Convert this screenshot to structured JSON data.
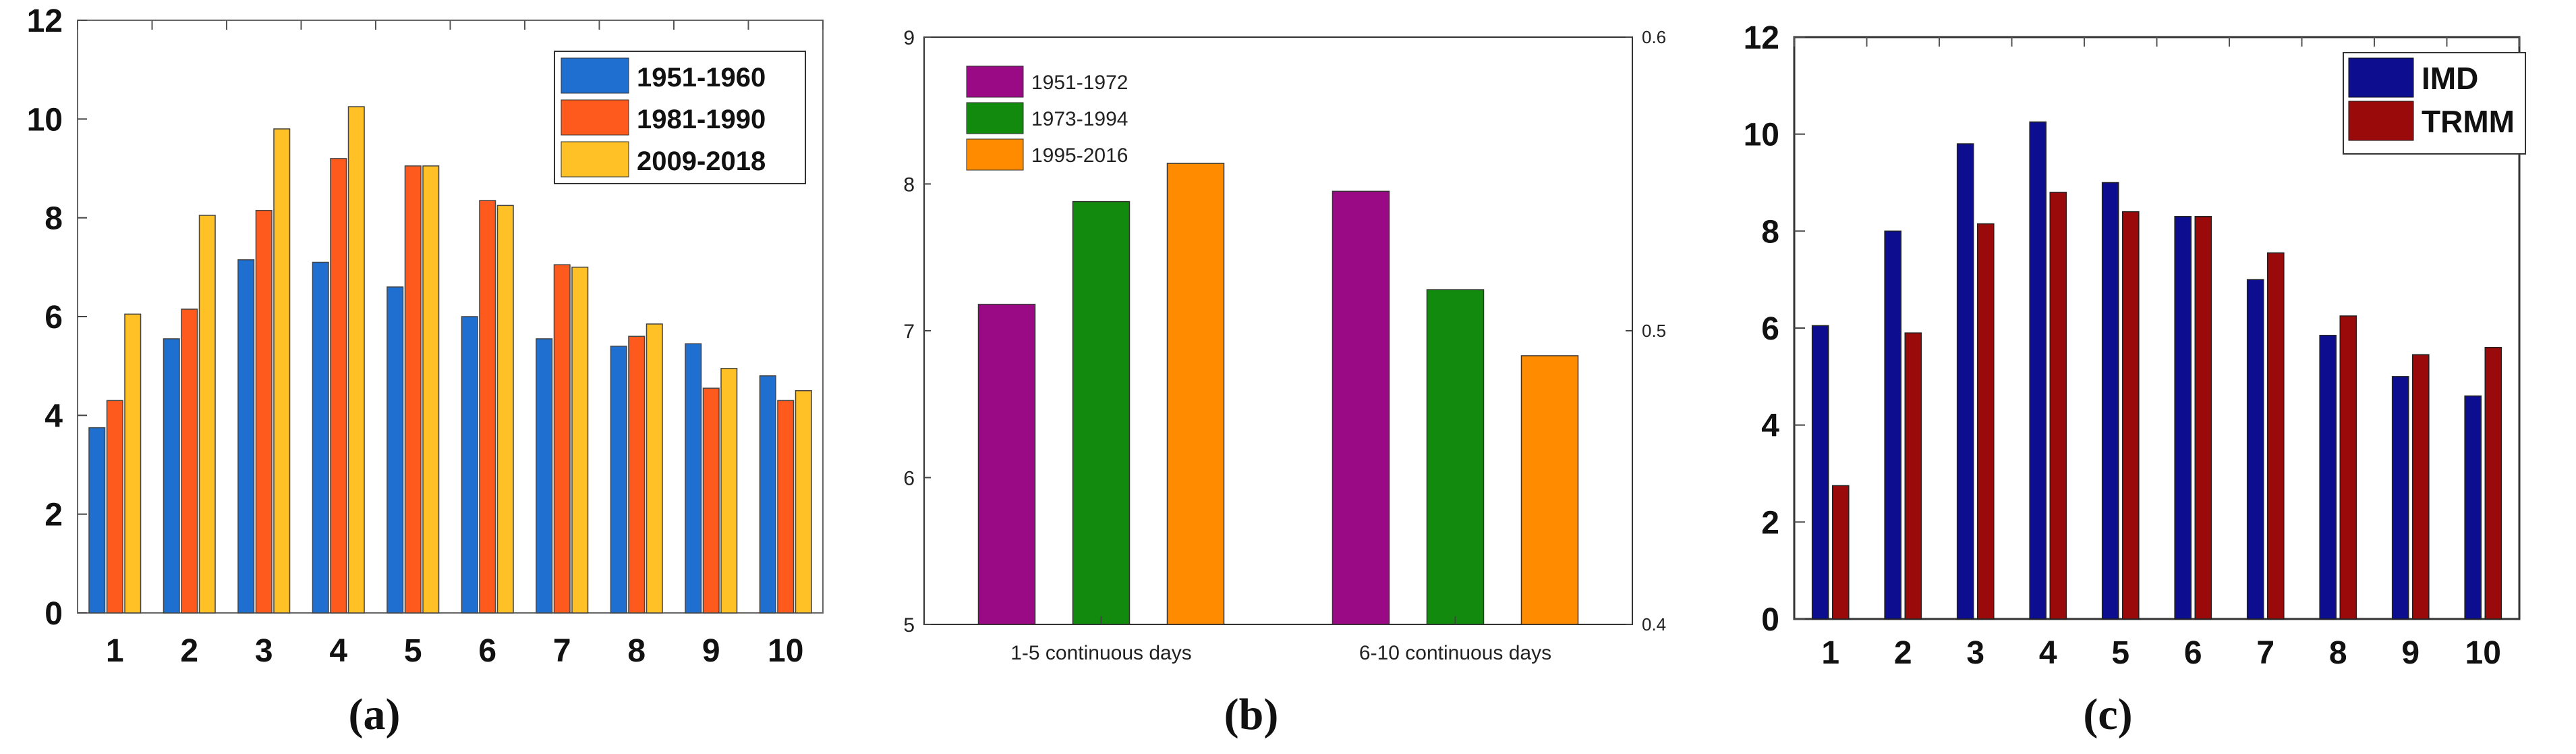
{
  "chart_data": [
    {
      "type": "bar",
      "panel_label": "(a)",
      "categories": [
        "1",
        "2",
        "3",
        "4",
        "5",
        "6",
        "7",
        "8",
        "9",
        "10"
      ],
      "ylim": [
        0,
        12
      ],
      "yticks": [
        "0",
        "2",
        "4",
        "6",
        "8",
        "10",
        "12"
      ],
      "series": [
        {
          "name": "1951-1960",
          "color": "#1f6fd0",
          "values": [
            3.75,
            5.55,
            7.15,
            7.1,
            6.6,
            6.0,
            5.55,
            5.4,
            5.45,
            4.8
          ]
        },
        {
          "name": "1981-1990",
          "color": "#ff5a1e",
          "values": [
            4.3,
            6.15,
            8.15,
            9.2,
            9.05,
            8.35,
            7.05,
            5.6,
            4.55,
            4.3
          ]
        },
        {
          "name": "2009-2018",
          "color": "#ffc125",
          "values": [
            6.05,
            8.05,
            9.8,
            10.25,
            9.05,
            8.25,
            7.0,
            5.85,
            4.95,
            4.5
          ]
        }
      ]
    },
    {
      "type": "bar",
      "panel_label": "(b)",
      "categories": [
        "1-5 continuous days",
        "6-10 continuous days"
      ],
      "ylim": [
        5,
        9
      ],
      "yticks": [
        "5",
        "6",
        "7",
        "8",
        "9"
      ],
      "right_ylim": [
        0.4,
        0.6
      ],
      "right_yticks": [
        "0.4",
        "0.5",
        "0.6"
      ],
      "series": [
        {
          "name": "1951-1972",
          "color": "#9b0a85",
          "values": [
            7.18,
            7.95
          ]
        },
        {
          "name": "1973-1994",
          "color": "#128a0e",
          "values": [
            7.88,
            7.28
          ]
        },
        {
          "name": "1995-2016",
          "color": "#ff8c00",
          "values": [
            8.14,
            6.83
          ]
        }
      ]
    },
    {
      "type": "bar",
      "panel_label": "(c)",
      "categories": [
        "1",
        "2",
        "3",
        "4",
        "5",
        "6",
        "7",
        "8",
        "9",
        "10"
      ],
      "ylim": [
        0,
        12
      ],
      "yticks": [
        "0",
        "2",
        "4",
        "6",
        "8",
        "10",
        "12"
      ],
      "series": [
        {
          "name": "IMD",
          "color": "#0d0d8f",
          "values": [
            6.05,
            8.0,
            9.8,
            10.25,
            9.0,
            8.3,
            7.0,
            5.85,
            5.0,
            4.6
          ]
        },
        {
          "name": "TRMM",
          "color": "#9a0a0a",
          "values": [
            2.75,
            5.9,
            8.15,
            8.8,
            8.4,
            8.3,
            7.55,
            6.25,
            5.45,
            5.6
          ]
        }
      ]
    }
  ]
}
